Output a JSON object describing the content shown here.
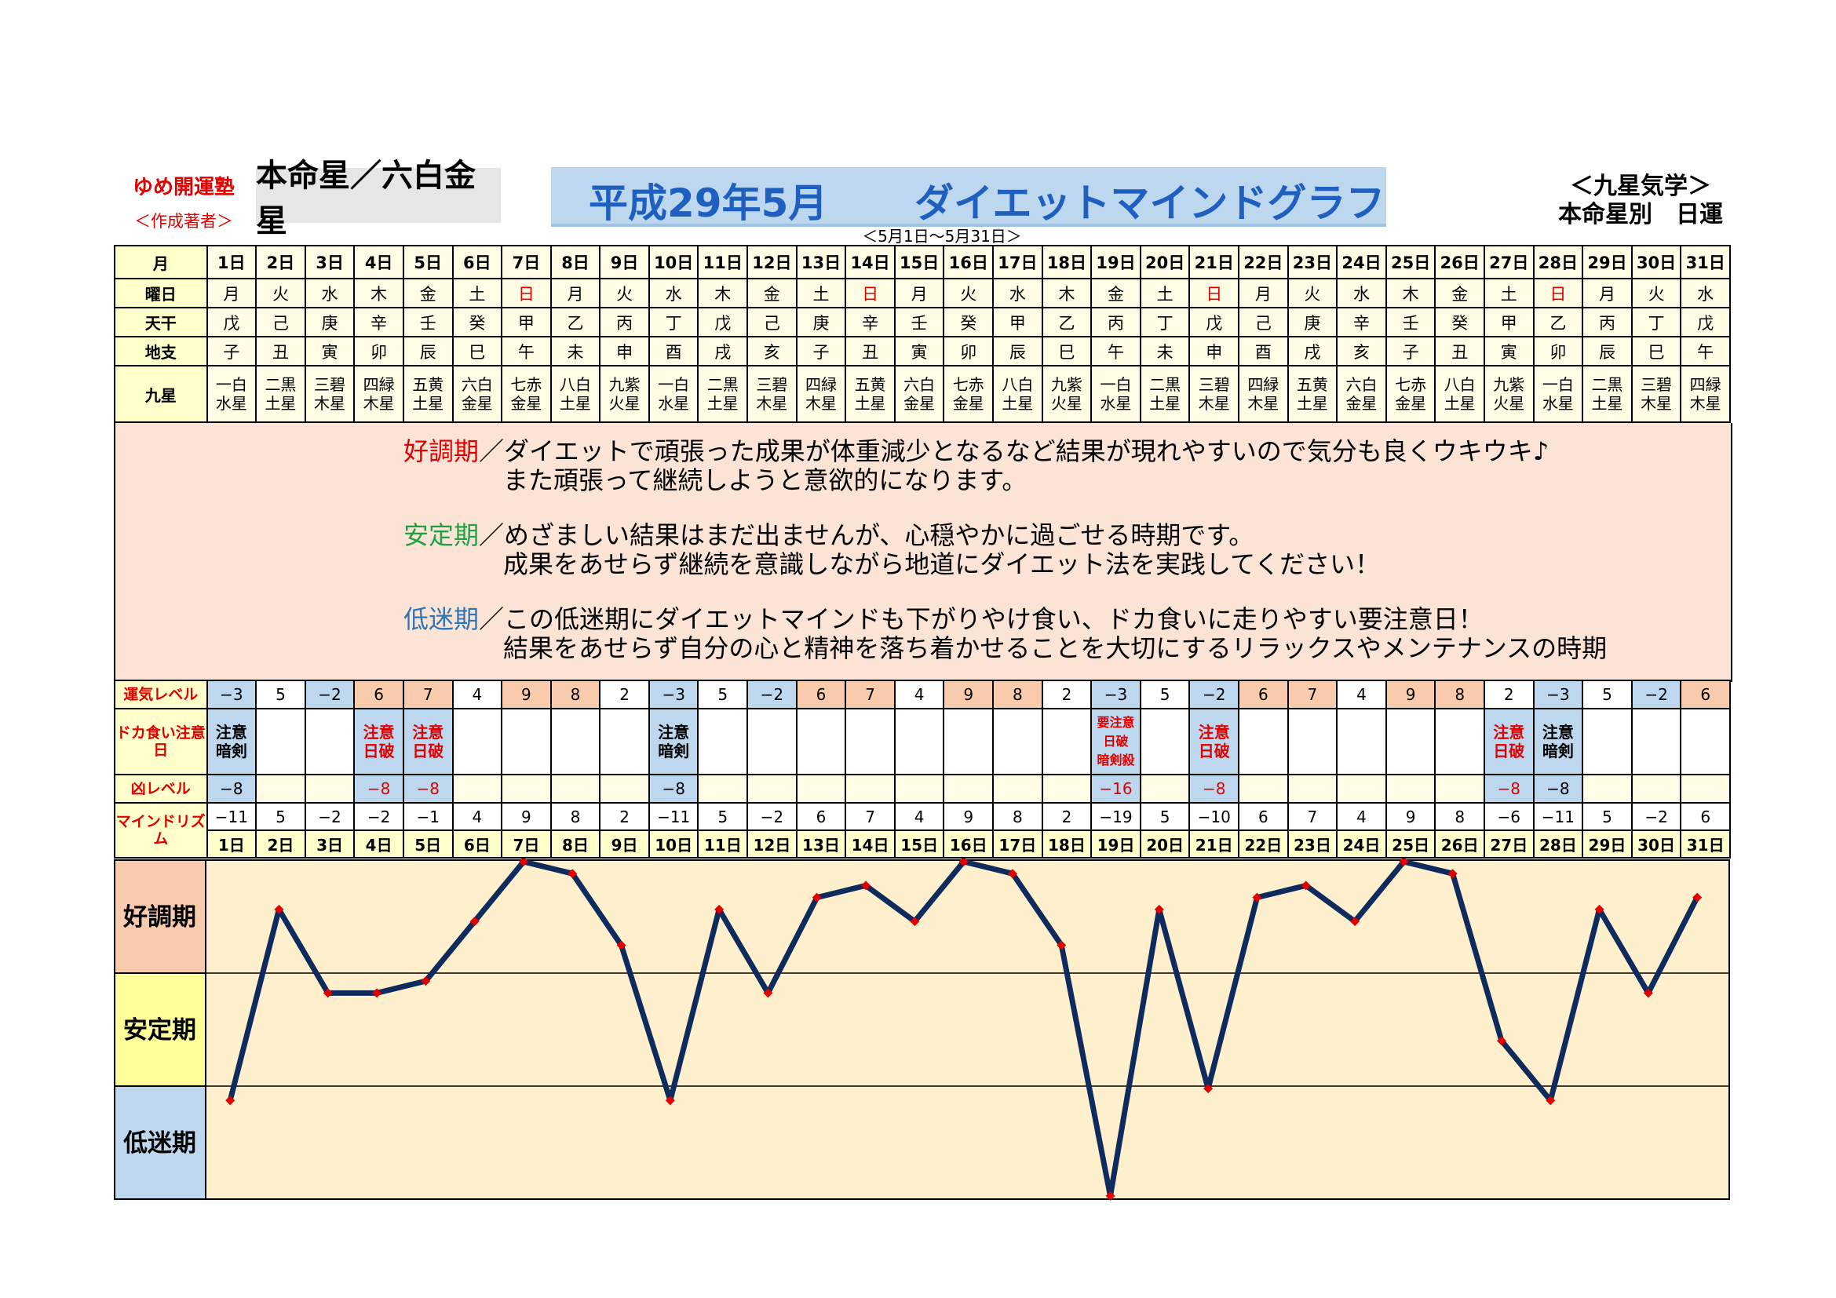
{
  "header": {
    "brand": "ゆめ開運塾",
    "brand_sub": "＜作成著者＞",
    "honmeisei": "本命星／六白金星",
    "title_left": "平成29年5月",
    "title_right": "ダイエットマインドグラフ",
    "range": "＜5月1日～5月31日＞",
    "kyusei": "＜九星気学＞",
    "kyusei_sub": "本命星別　日運"
  },
  "row_labels": {
    "month": "月",
    "weekday": "曜日",
    "tenkan": "天干",
    "chishi": "地支",
    "kyusei": "九星",
    "unki": "運気レベル",
    "dokagui": "ドカ食い注意日",
    "kyo": "凶レベル",
    "mind": "マインドリズム"
  },
  "days": [
    "1日",
    "2日",
    "3日",
    "4日",
    "5日",
    "6日",
    "7日",
    "8日",
    "9日",
    "10日",
    "11日",
    "12日",
    "13日",
    "14日",
    "15日",
    "16日",
    "17日",
    "18日",
    "19日",
    "20日",
    "21日",
    "22日",
    "23日",
    "24日",
    "25日",
    "26日",
    "27日",
    "28日",
    "29日",
    "30日",
    "31日"
  ],
  "weekdays": [
    "月",
    "火",
    "水",
    "木",
    "金",
    "土",
    "日",
    "月",
    "火",
    "水",
    "木",
    "金",
    "土",
    "日",
    "月",
    "火",
    "水",
    "木",
    "金",
    "土",
    "日",
    "月",
    "火",
    "水",
    "木",
    "金",
    "土",
    "日",
    "月",
    "火",
    "水"
  ],
  "tenkan": [
    "戊",
    "己",
    "庚",
    "辛",
    "壬",
    "癸",
    "甲",
    "乙",
    "丙",
    "丁",
    "戊",
    "己",
    "庚",
    "辛",
    "壬",
    "癸",
    "甲",
    "乙",
    "丙",
    "丁",
    "戊",
    "己",
    "庚",
    "辛",
    "壬",
    "癸",
    "甲",
    "乙",
    "丙",
    "丁",
    "戊"
  ],
  "chishi": [
    "子",
    "丑",
    "寅",
    "卯",
    "辰",
    "巳",
    "午",
    "未",
    "申",
    "酉",
    "戌",
    "亥",
    "子",
    "丑",
    "寅",
    "卯",
    "辰",
    "巳",
    "午",
    "未",
    "申",
    "酉",
    "戌",
    "亥",
    "子",
    "丑",
    "寅",
    "卯",
    "辰",
    "巳",
    "午"
  ],
  "kyusei_top": [
    "一白",
    "二黒",
    "三碧",
    "四緑",
    "五黄",
    "六白",
    "七赤",
    "八白",
    "九紫",
    "一白",
    "二黒",
    "三碧",
    "四緑",
    "五黄",
    "六白",
    "七赤",
    "八白",
    "九紫",
    "一白",
    "二黒",
    "三碧",
    "四緑",
    "五黄",
    "六白",
    "七赤",
    "八白",
    "九紫",
    "一白",
    "二黒",
    "三碧",
    "四緑"
  ],
  "kyusei_bot": [
    "水星",
    "土星",
    "木星",
    "木星",
    "土星",
    "金星",
    "金星",
    "土星",
    "火星",
    "水星",
    "土星",
    "木星",
    "木星",
    "土星",
    "金星",
    "金星",
    "土星",
    "火星",
    "水星",
    "土星",
    "木星",
    "木星",
    "土星",
    "金星",
    "金星",
    "土星",
    "火星",
    "水星",
    "土星",
    "木星",
    "木星"
  ],
  "description": {
    "p1_kw": "好調期",
    "p1_l1": "／ダイエットで頑張った成果が体重減少となるなど結果が現れやすいので気分も良くウキウキ♪",
    "p1_l2": "また頑張って継続しようと意欲的になります。",
    "p2_kw": "安定期",
    "p2_l1": "／めざましい結果はまだ出ませんが、心穏やかに過ごせる時期です。",
    "p2_l2": "成果をあせらず継続を意識しながら地道にダイエット法を実践してください！",
    "p3_kw": "低迷期",
    "p3_l1": "／この低迷期にダイエットマインドも下がりやけ食い、ドカ食いに走りやすい要注意日！",
    "p3_l2": "結果をあせらず自分の心と精神を落ち着かせることを大切にするリラックスやメンテナンスの時期"
  },
  "unki_level": [
    "−3",
    "5",
    "−2",
    "6",
    "7",
    "4",
    "9",
    "8",
    "2",
    "−3",
    "5",
    "−2",
    "6",
    "7",
    "4",
    "9",
    "8",
    "2",
    "−3",
    "5",
    "−2",
    "6",
    "7",
    "4",
    "9",
    "8",
    "2",
    "−3",
    "5",
    "−2",
    "6"
  ],
  "caution": [
    [
      "注意",
      "暗剣"
    ],
    [],
    [],
    [
      "注意",
      "日破"
    ],
    [
      "注意",
      "日破"
    ],
    [],
    [],
    [],
    [],
    [
      "注意",
      "暗剣"
    ],
    [],
    [],
    [],
    [],
    [],
    [],
    [],
    [],
    [
      "要注意",
      "日破",
      "暗剣殺"
    ],
    [],
    [
      "注意",
      "日破"
    ],
    [],
    [],
    [],
    [],
    [],
    [
      "注意",
      "日破"
    ],
    [
      "注意",
      "暗剣"
    ],
    [],
    [],
    []
  ],
  "kyo_level": [
    "−8",
    "",
    "",
    "−8",
    "−8",
    "",
    "",
    "",
    "",
    "−8",
    "",
    "",
    "",
    "",
    "",
    "",
    "",
    "",
    "−16",
    "",
    "−8",
    "",
    "",
    "",
    "",
    "",
    "−8",
    "−8",
    "",
    "",
    ""
  ],
  "mind_rhythm": [
    "−11",
    "5",
    "−2",
    "−2",
    "−1",
    "4",
    "9",
    "8",
    "2",
    "−11",
    "5",
    "−2",
    "6",
    "7",
    "4",
    "9",
    "8",
    "2",
    "−19",
    "5",
    "−10",
    "6",
    "7",
    "4",
    "9",
    "8",
    "−6",
    "−11",
    "5",
    "−2",
    "6"
  ],
  "chart_data": {
    "type": "line",
    "x": [
      1,
      2,
      3,
      4,
      5,
      6,
      7,
      8,
      9,
      10,
      11,
      12,
      13,
      14,
      15,
      16,
      17,
      18,
      19,
      20,
      21,
      22,
      23,
      24,
      25,
      26,
      27,
      28,
      29,
      30,
      31
    ],
    "series": [
      {
        "values": [
          -11,
          5,
          -2,
          -2,
          -1,
          4,
          9,
          8,
          2,
          -11,
          5,
          -2,
          6,
          7,
          4,
          9,
          8,
          2,
          -19,
          5,
          -10,
          6,
          7,
          4,
          9,
          8,
          -6,
          -11,
          5,
          -2,
          6
        ]
      }
    ],
    "y_bands": [
      "好調期",
      "安定期",
      "低迷期"
    ],
    "ylim": [
      -19,
      9
    ],
    "line_color": "#0f2a5c",
    "marker_color": "#e00000"
  },
  "colors": {
    "plot_bg": "#fef0cc",
    "band_good": "#f8cbad",
    "band_stable": "#ffff99",
    "band_low": "#bdd7ee",
    "kw_good": "#e00000",
    "kw_stable": "#20a040",
    "kw_low": "#2e75b6"
  }
}
